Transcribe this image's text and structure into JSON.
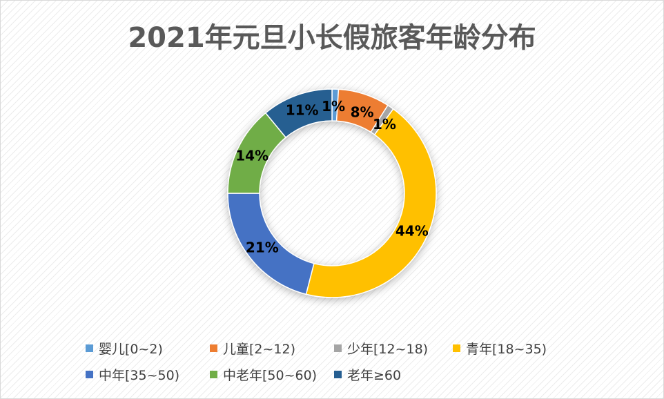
{
  "chart_data": {
    "type": "pie",
    "style": "donut",
    "title": "2021年元旦小长假旅客年龄分布",
    "categories": [
      "婴儿[0~2)",
      "儿童[2~12)",
      "少年[12~18)",
      "青年[18~35)",
      "中年[35~50)",
      "中老年[50~60)",
      "老年≥60"
    ],
    "values": [
      1,
      8,
      1,
      44,
      21,
      14,
      11
    ],
    "labels": [
      "1%",
      "8%",
      "1%",
      "44%",
      "21%",
      "14%",
      "11%"
    ],
    "colors": [
      "#5b9bd5",
      "#ed7d31",
      "#a5a5a5",
      "#ffc000",
      "#4472c4",
      "#70ad47",
      "#255e91"
    ],
    "legend_position": "bottom"
  }
}
